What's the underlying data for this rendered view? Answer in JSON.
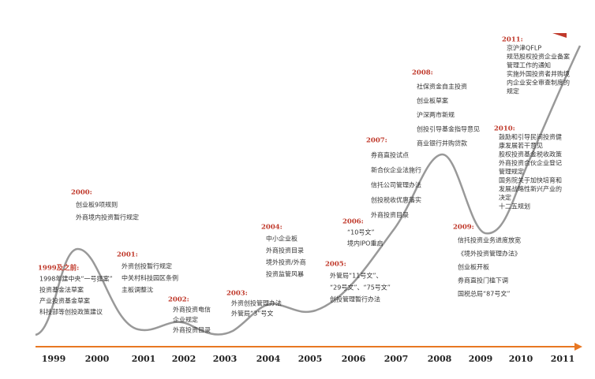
{
  "years": [
    "1999",
    "2000",
    "2001",
    "2002",
    "2003",
    "2004",
    "2005",
    "2006",
    "2007",
    "2008",
    "2009",
    "2010",
    "2011"
  ],
  "events": [
    {
      "heading": "1999及之前:",
      "lines": [
        "1998年建中央“一号提案”",
        "投资基金法草案",
        "产业投资基金草案",
        "科技部等创投政策建议"
      ]
    },
    {
      "heading": "2000:",
      "lines": [
        "创业板9项规则",
        "外商境内投资暂行规定"
      ]
    },
    {
      "heading": "2001:",
      "lines": [
        "外资创投暂行规定",
        "中关村科技园区条例",
        "主板调整沈"
      ]
    },
    {
      "heading": "2002:",
      "lines": [
        "外商投资电信",
        "企业规定",
        "外商投资目录"
      ]
    },
    {
      "heading": "2003:",
      "lines": [
        "外资创投管理办法",
        "外管局“3”号文"
      ]
    },
    {
      "heading": "2004:",
      "lines": [
        "中小企业板",
        "外商投资目录",
        "境外投资/外商",
        "投资监管风暴"
      ]
    },
    {
      "heading": "2005:",
      "lines": [
        "外管局“11号文”、",
        "“29号文”、“75号文”",
        "创投管理暂行办法"
      ]
    },
    {
      "heading": "2006:",
      "lines": [
        "“10号文”",
        "境内IPO重启"
      ]
    },
    {
      "heading": "2007:",
      "lines": [
        "券商直投试点",
        "新合伙企业法施行",
        "信托公司管理办法",
        "创投税收优惠落实",
        "外商投资目录"
      ]
    },
    {
      "heading": "2008:",
      "lines": [
        "社保资金自主投资",
        "创业板草案",
        "沪深两市新规",
        "创投引导基金指导意见",
        "商业银行并购贷款"
      ]
    },
    {
      "heading": "2009:",
      "lines": [
        "信托投资业务进度放宽",
        "《境外投资管理办法》",
        "创业板开板",
        "券商直投门槛下调",
        "国税总局“87号文”"
      ]
    },
    {
      "heading": "2010:",
      "lines": [
        "鼓励和引导民间投资健",
        "康发展若干意见",
        "股权投资基金税收政策",
        "外商投资合伙企业登记",
        "管理规定",
        "国务院关于加快培育和",
        "发展战略性新兴产业的",
        "决定",
        "十二五规划"
      ]
    },
    {
      "heading": "2011:",
      "lines": [
        "京沪津QFLP",
        "规范股权投资企业备案",
        "管理工作的通知",
        "实施外国投资者并购境",
        "内企业安全审查制度的",
        "规定"
      ]
    }
  ]
}
